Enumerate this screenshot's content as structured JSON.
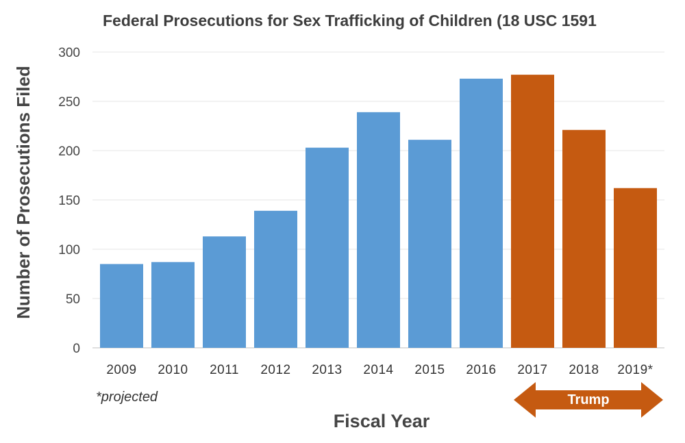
{
  "colors": {
    "pre": "#5b9bd5",
    "post": "#c55a11",
    "grid": "#e4e4e4",
    "axis": "#bfbfbf"
  },
  "chart_data": {
    "type": "bar",
    "title": "Federal Prosecutions for Sex Trafficking of Children (18 USC 1591",
    "xlabel": "Fiscal Year",
    "ylabel": "Number of Prosecutions Filed",
    "categories": [
      "2009",
      "2010",
      "2011",
      "2012",
      "2013",
      "2014",
      "2015",
      "2016",
      "2017",
      "2018",
      "2019*"
    ],
    "values": [
      85,
      87,
      113,
      139,
      203,
      239,
      211,
      273,
      277,
      221,
      162
    ],
    "ylim": [
      0,
      300
    ],
    "yticks": [
      0,
      50,
      100,
      150,
      200,
      250,
      300
    ],
    "highlight_from_index": 8,
    "note": "*projected",
    "annotation": "Trump",
    "grid": true
  }
}
